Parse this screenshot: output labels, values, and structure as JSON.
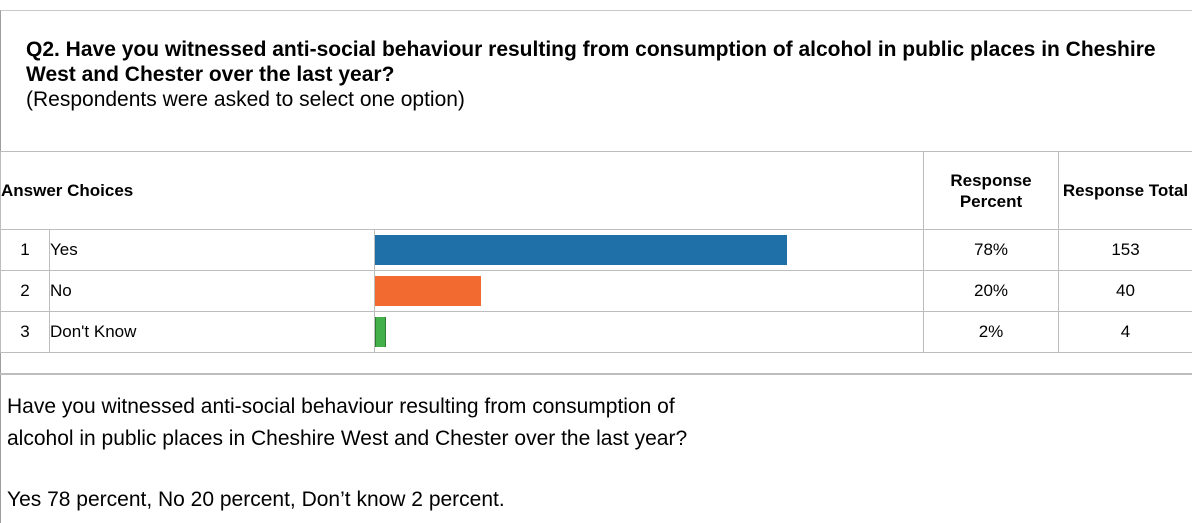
{
  "question": {
    "title": "Q2. Have you witnessed anti-social behaviour resulting from consumption of alcohol in public places in Cheshire West and Chester over the last year?",
    "note": "(Respondents were asked to select one option)"
  },
  "table": {
    "header_choices": "Answer Choices",
    "header_percent": "Response Percent",
    "header_total": "Response Total",
    "rows": [
      {
        "index": "1",
        "label": "Yes",
        "percent": "78%",
        "fraction": 0.78,
        "total": "153",
        "color": "#1f6fa9"
      },
      {
        "index": "2",
        "label": "No",
        "percent": "20%",
        "fraction": 0.2,
        "total": "40",
        "color": "#f26a30"
      },
      {
        "index": "3",
        "label": "Don't Know",
        "percent": "2%",
        "fraction": 0.02,
        "total": "4",
        "color": "#43b04a"
      }
    ]
  },
  "summary": {
    "text": "Have you witnessed anti-social behaviour resulting from consumption of alcohol in public places in Cheshire West and Chester over the last year?",
    "result": "Yes 78 percent, No 20 percent, Don’t know 2 percent."
  }
}
